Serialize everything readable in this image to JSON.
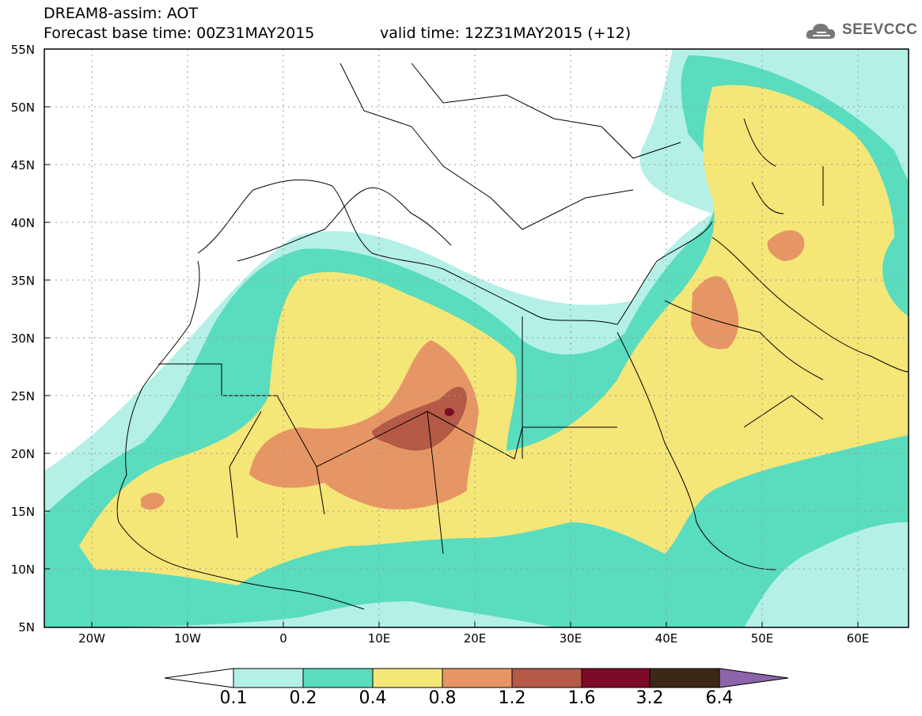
{
  "header": {
    "title": "DREAM8-assim: AOT",
    "base_time": "Forecast base time: 00Z31MAY2015",
    "valid_time": "valid time: 12Z31MAY2015 (+12)",
    "logo_text": "SEEVCCC"
  },
  "map": {
    "lat_labels": [
      "55N",
      "50N",
      "45N",
      "40N",
      "35N",
      "30N",
      "25N",
      "20N",
      "15N",
      "10N",
      "5N"
    ],
    "lon_labels": [
      "20W",
      "10W",
      "0",
      "10E",
      "20E",
      "30E",
      "40E",
      "50E",
      "60E"
    ],
    "lon_range": [
      -25,
      65
    ],
    "lat_range": [
      5,
      55
    ],
    "grid": "dotted"
  },
  "colorbar": {
    "labels": [
      "0.1",
      "0.2",
      "0.4",
      "0.8",
      "1.2",
      "1.6",
      "3.2",
      "6.4"
    ],
    "colors": [
      "#ffffff",
      "#b4f0e6",
      "#5adcbe",
      "#f5e678",
      "#e69664",
      "#b45a46",
      "#7d0a28",
      "#3c2814",
      "#8c64aa"
    ]
  }
}
